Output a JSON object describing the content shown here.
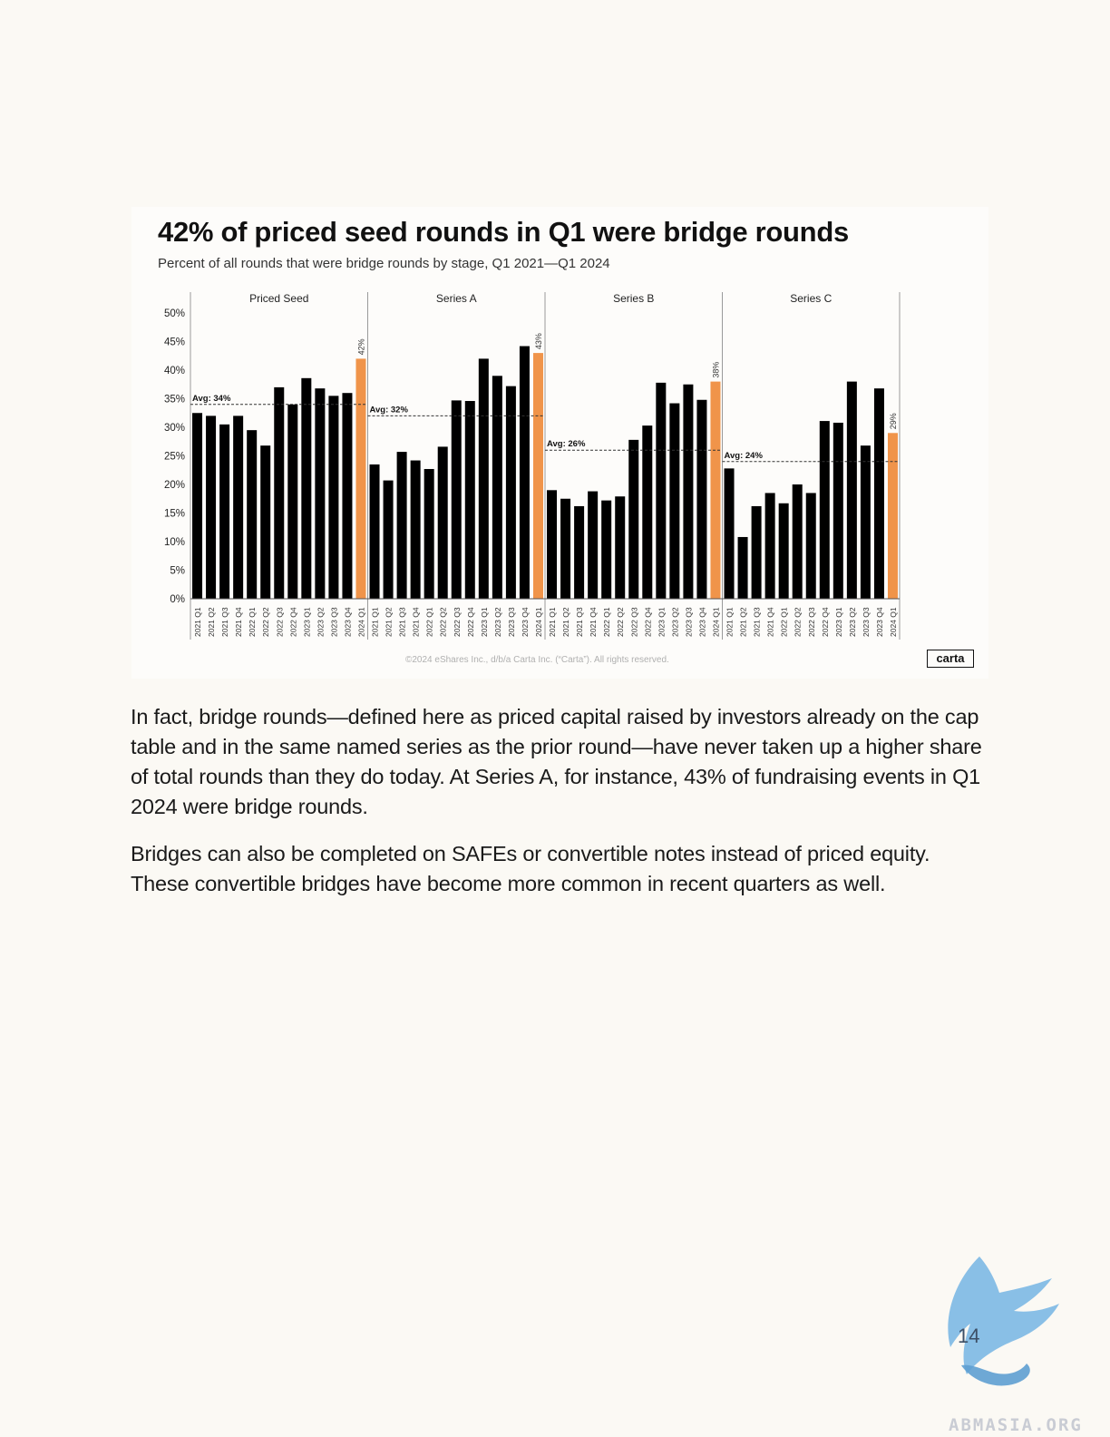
{
  "chart_data": {
    "type": "bar",
    "title": "42% of priced seed rounds in Q1 were bridge rounds",
    "subtitle": "Percent of all rounds that were bridge rounds by stage, Q1 2021—Q1 2024",
    "y_ticks": [
      "0%",
      "5%",
      "10%",
      "15%",
      "20%",
      "25%",
      "30%",
      "35%",
      "40%",
      "45%",
      "50%"
    ],
    "ylim": [
      0,
      50
    ],
    "categories": [
      "2021 Q1",
      "2021 Q2",
      "2021 Q3",
      "2021 Q4",
      "2022 Q1",
      "2022 Q2",
      "2022 Q3",
      "2022 Q4",
      "2023 Q1",
      "2023 Q2",
      "2023 Q3",
      "2023 Q4",
      "2024 Q1"
    ],
    "colors": {
      "bar": "#000000",
      "highlight": "#f0944a"
    },
    "panels": [
      {
        "name": "Priced Seed",
        "avg": 34,
        "avg_label": "Avg: 34%",
        "highlight_label": "42%",
        "values": [
          32.5,
          32,
          30.5,
          32,
          29.5,
          26.8,
          37,
          34,
          38.6,
          36.8,
          35.5,
          36,
          42
        ]
      },
      {
        "name": "Series A",
        "avg": 32,
        "avg_label": "Avg: 32%",
        "highlight_label": "43%",
        "values": [
          23.5,
          20.7,
          25.7,
          24.2,
          22.7,
          26.6,
          34.7,
          34.6,
          42,
          39,
          37.2,
          44.2,
          43
        ]
      },
      {
        "name": "Series B",
        "avg": 26,
        "avg_label": "Avg: 26%",
        "highlight_label": "38%",
        "values": [
          19,
          17.5,
          16.2,
          18.8,
          17.2,
          17.9,
          27.8,
          30.3,
          37.8,
          34.2,
          37.5,
          34.8,
          38
        ]
      },
      {
        "name": "Series C",
        "avg": 24,
        "avg_label": "Avg: 24%",
        "highlight_label": "29%",
        "values": [
          22.8,
          10.8,
          16.2,
          18.5,
          16.7,
          20,
          18.5,
          31.1,
          30.8,
          38,
          26.8,
          36.8,
          29
        ]
      }
    ]
  },
  "copyright": "©2024 eShares Inc., d/b/a Carta Inc. (“Carta”). All rights reserved.",
  "logo_text": "carta",
  "paragraphs": [
    "In fact, bridge rounds—defined here as priced capital raised by investors already on the cap table and in the same named series as the prior round—have never taken up a higher share of total rounds than they do today. At Series A, for instance, 43% of fundraising events in Q1 2024 were bridge rounds.",
    "Bridges can also be completed on SAFEs or convertible notes instead of priced equity. These convertible bridges have become more common in recent quarters as well."
  ],
  "page_number": "14",
  "watermark": "ABMASIA.ORG"
}
